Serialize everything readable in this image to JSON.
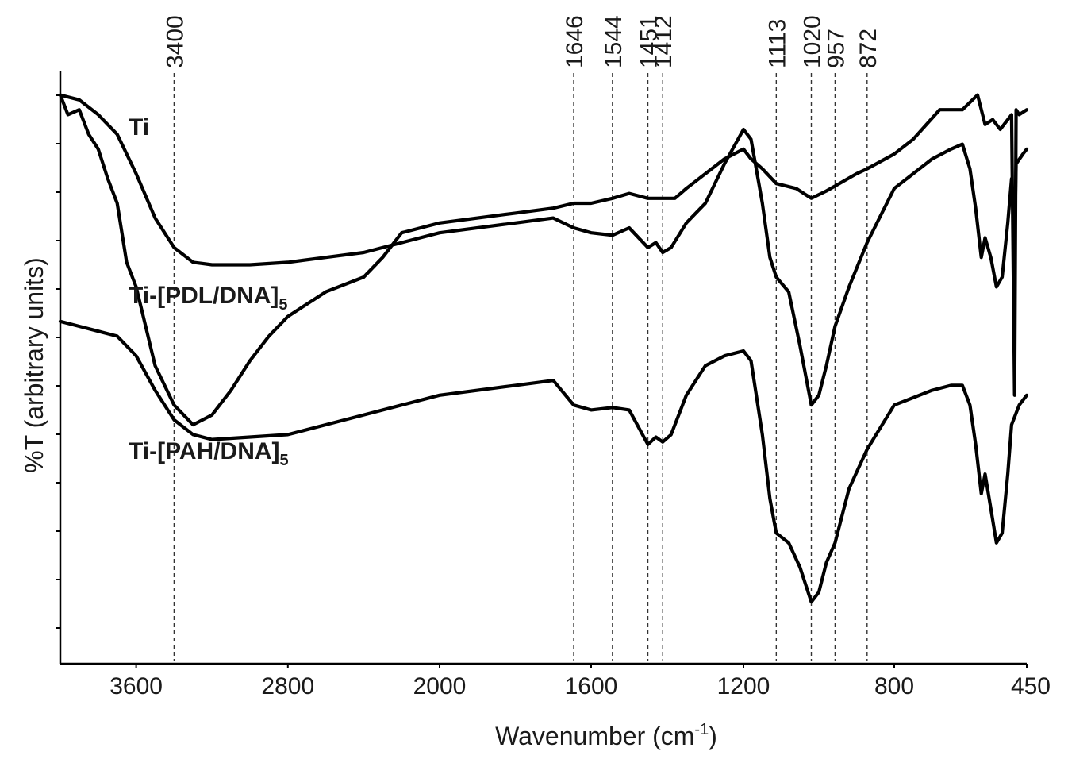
{
  "chart_data": {
    "type": "line",
    "title": "",
    "xlabel": "Wavenumber (cm",
    "xlabel_sup": "-1",
    "xlabel_close": ")",
    "ylabel": "%T (arbitrary units)",
    "xlim": [
      4000,
      450
    ],
    "x_reversed": true,
    "y_ticks_unlabeled": true,
    "x_ticks": [
      {
        "value": 3600,
        "label": "3600"
      },
      {
        "value": 2800,
        "label": "2800"
      },
      {
        "value": 2000,
        "label": "2000"
      },
      {
        "value": 1600,
        "label": "1600"
      },
      {
        "value": 1200,
        "label": "1200"
      },
      {
        "value": 800,
        "label": "800"
      },
      {
        "value": 450,
        "label": "450"
      }
    ],
    "peak_markers": [
      {
        "x": 3400,
        "label": "3400"
      },
      {
        "x": 1646,
        "label": "1646"
      },
      {
        "x": 1544,
        "label": "1544"
      },
      {
        "x": 1451,
        "label": "1451"
      },
      {
        "x": 1412,
        "label": "1412"
      },
      {
        "x": 1113,
        "label": "1113"
      },
      {
        "x": 1020,
        "label": "1020"
      },
      {
        "x": 957,
        "label": "957"
      },
      {
        "x": 872,
        "label": "872"
      }
    ],
    "series": [
      {
        "name": "Ti",
        "name_sub": "",
        "points": [
          [
            4000,
            9.7
          ],
          [
            3960,
            9.3
          ],
          [
            3900,
            9.4
          ],
          [
            3850,
            8.9
          ],
          [
            3800,
            8.6
          ],
          [
            3750,
            8.0
          ],
          [
            3700,
            7.5
          ],
          [
            3650,
            6.3
          ],
          [
            3600,
            5.8
          ],
          [
            3500,
            4.2
          ],
          [
            3400,
            3.4
          ],
          [
            3300,
            3.0
          ],
          [
            3200,
            3.2
          ],
          [
            3100,
            3.7
          ],
          [
            3000,
            4.3
          ],
          [
            2900,
            4.8
          ],
          [
            2800,
            5.2
          ],
          [
            2600,
            5.7
          ],
          [
            2400,
            6.0
          ],
          [
            2300,
            6.4
          ],
          [
            2200,
            6.9
          ],
          [
            2100,
            7.0
          ],
          [
            2000,
            7.1
          ],
          [
            1800,
            7.3
          ],
          [
            1700,
            7.4
          ],
          [
            1646,
            7.5
          ],
          [
            1600,
            7.5
          ],
          [
            1544,
            7.6
          ],
          [
            1500,
            7.7
          ],
          [
            1451,
            7.6
          ],
          [
            1412,
            7.6
          ],
          [
            1380,
            7.6
          ],
          [
            1350,
            7.8
          ],
          [
            1300,
            8.1
          ],
          [
            1250,
            8.4
          ],
          [
            1200,
            8.6
          ],
          [
            1180,
            8.4
          ],
          [
            1150,
            8.2
          ],
          [
            1113,
            7.9
          ],
          [
            1060,
            7.8
          ],
          [
            1020,
            7.6
          ],
          [
            980,
            7.75
          ],
          [
            957,
            7.85
          ],
          [
            900,
            8.1
          ],
          [
            872,
            8.2
          ],
          [
            800,
            8.5
          ],
          [
            750,
            8.8
          ],
          [
            680,
            9.4
          ],
          [
            620,
            9.4
          ],
          [
            580,
            9.7
          ],
          [
            560,
            9.1
          ],
          [
            540,
            9.2
          ],
          [
            520,
            9.0
          ],
          [
            490,
            9.3
          ],
          [
            482,
            3.6
          ],
          [
            478,
            9.4
          ],
          [
            470,
            9.3
          ],
          [
            450,
            9.4
          ]
        ]
      },
      {
        "name": "Ti-[PDL/DNA]",
        "name_sub": "5",
        "points": [
          [
            4000,
            9.7
          ],
          [
            3900,
            9.6
          ],
          [
            3800,
            9.3
          ],
          [
            3700,
            8.9
          ],
          [
            3600,
            8.1
          ],
          [
            3500,
            7.2
          ],
          [
            3400,
            6.6
          ],
          [
            3300,
            6.3
          ],
          [
            3200,
            6.25
          ],
          [
            3000,
            6.25
          ],
          [
            2800,
            6.3
          ],
          [
            2600,
            6.4
          ],
          [
            2400,
            6.5
          ],
          [
            2200,
            6.7
          ],
          [
            2000,
            6.9
          ],
          [
            1800,
            7.1
          ],
          [
            1700,
            7.2
          ],
          [
            1646,
            7.0
          ],
          [
            1600,
            6.9
          ],
          [
            1544,
            6.85
          ],
          [
            1500,
            7.0
          ],
          [
            1451,
            6.6
          ],
          [
            1430,
            6.7
          ],
          [
            1412,
            6.5
          ],
          [
            1390,
            6.6
          ],
          [
            1350,
            7.1
          ],
          [
            1300,
            7.5
          ],
          [
            1250,
            8.3
          ],
          [
            1200,
            9.0
          ],
          [
            1180,
            8.8
          ],
          [
            1150,
            7.5
          ],
          [
            1130,
            6.4
          ],
          [
            1113,
            6.0
          ],
          [
            1080,
            5.7
          ],
          [
            1050,
            4.6
          ],
          [
            1020,
            3.4
          ],
          [
            1000,
            3.6
          ],
          [
            980,
            4.2
          ],
          [
            957,
            5.0
          ],
          [
            920,
            5.8
          ],
          [
            872,
            6.7
          ],
          [
            800,
            7.8
          ],
          [
            700,
            8.4
          ],
          [
            650,
            8.6
          ],
          [
            620,
            8.7
          ],
          [
            600,
            8.2
          ],
          [
            585,
            7.4
          ],
          [
            570,
            6.4
          ],
          [
            560,
            6.8
          ],
          [
            545,
            6.4
          ],
          [
            530,
            5.8
          ],
          [
            515,
            6.0
          ],
          [
            500,
            7.1
          ],
          [
            490,
            8.0
          ],
          [
            482,
            6.6
          ],
          [
            478,
            8.3
          ],
          [
            460,
            8.5
          ],
          [
            450,
            8.6
          ]
        ]
      },
      {
        "name": "Ti-[PAH/DNA]",
        "name_sub": "5",
        "points": [
          [
            4000,
            5.1
          ],
          [
            3900,
            5.0
          ],
          [
            3800,
            4.9
          ],
          [
            3700,
            4.8
          ],
          [
            3600,
            4.4
          ],
          [
            3500,
            3.7
          ],
          [
            3400,
            3.1
          ],
          [
            3300,
            2.8
          ],
          [
            3200,
            2.7
          ],
          [
            3000,
            2.75
          ],
          [
            2800,
            2.8
          ],
          [
            2600,
            3.0
          ],
          [
            2400,
            3.2
          ],
          [
            2200,
            3.4
          ],
          [
            2000,
            3.6
          ],
          [
            1800,
            3.8
          ],
          [
            1700,
            3.9
          ],
          [
            1646,
            3.4
          ],
          [
            1600,
            3.3
          ],
          [
            1544,
            3.35
          ],
          [
            1500,
            3.3
          ],
          [
            1451,
            2.6
          ],
          [
            1430,
            2.75
          ],
          [
            1412,
            2.65
          ],
          [
            1390,
            2.8
          ],
          [
            1350,
            3.6
          ],
          [
            1300,
            4.2
          ],
          [
            1250,
            4.4
          ],
          [
            1200,
            4.5
          ],
          [
            1180,
            4.3
          ],
          [
            1150,
            2.8
          ],
          [
            1130,
            1.5
          ],
          [
            1113,
            0.8
          ],
          [
            1080,
            0.6
          ],
          [
            1050,
            0.1
          ],
          [
            1020,
            -0.6
          ],
          [
            1000,
            -0.4
          ],
          [
            980,
            0.2
          ],
          [
            957,
            0.6
          ],
          [
            920,
            1.7
          ],
          [
            872,
            2.5
          ],
          [
            800,
            3.4
          ],
          [
            700,
            3.7
          ],
          [
            650,
            3.8
          ],
          [
            620,
            3.8
          ],
          [
            600,
            3.4
          ],
          [
            585,
            2.6
          ],
          [
            570,
            1.6
          ],
          [
            560,
            2.0
          ],
          [
            545,
            1.3
          ],
          [
            530,
            0.6
          ],
          [
            515,
            0.8
          ],
          [
            500,
            2.0
          ],
          [
            490,
            3.0
          ],
          [
            470,
            3.4
          ],
          [
            450,
            3.6
          ]
        ]
      }
    ]
  }
}
